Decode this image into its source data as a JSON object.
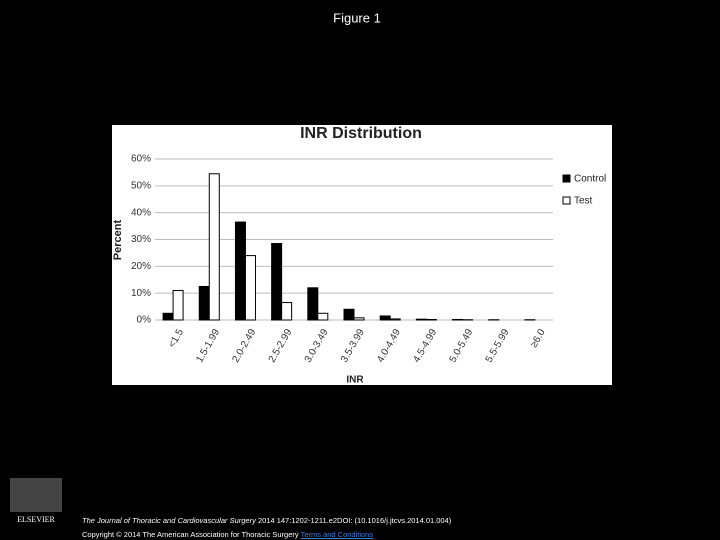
{
  "figure_label": "Figure 1",
  "chart_data": {
    "type": "bar",
    "title": "INR Distribution",
    "x_label": "INR",
    "y_label": "Percent",
    "categories": [
      "<1.5",
      "1.5-1.99",
      "2.0-2.49",
      "2.5-2.99",
      "3.0-3.49",
      "3.5-3.99",
      "4.0-4.49",
      "4.5-4.99",
      "5.0-5.49",
      "5.5-5.99",
      "≥6.0"
    ],
    "series": [
      {
        "name": "Control",
        "color": "#000000",
        "values": [
          2.5,
          12.5,
          36.5,
          28.5,
          12,
          4,
          1.5,
          0.3,
          0.2,
          0.1,
          0.1
        ]
      },
      {
        "name": "Test",
        "color": "#ffffff",
        "values": [
          11,
          54.5,
          24,
          6.5,
          2.5,
          0.8,
          0.4,
          0.2,
          0.1,
          0,
          0
        ]
      }
    ],
    "ylim": [
      0,
      60
    ],
    "yticks": [
      {
        "value": 0,
        "label": "0%"
      },
      {
        "value": 10,
        "label": "10%"
      },
      {
        "value": 20,
        "label": "20%"
      },
      {
        "value": 30,
        "label": "30%"
      },
      {
        "value": 40,
        "label": "40%"
      },
      {
        "value": 50,
        "label": "50%"
      },
      {
        "value": 60,
        "label": "60%"
      }
    ],
    "grid": true,
    "legend": "right"
  },
  "footer": {
    "journal": "The Journal of Thoracic and Cardiovascular Surgery",
    "citation": "2014 147:1202-1211.e2DOI: (10.1016/j.jtcvs.2014.01.004)",
    "copyright": "Copyright © 2014 The American Association for Thoracic Surgery",
    "link": "Terms and Conditions",
    "logo": "ELSEVIER"
  }
}
